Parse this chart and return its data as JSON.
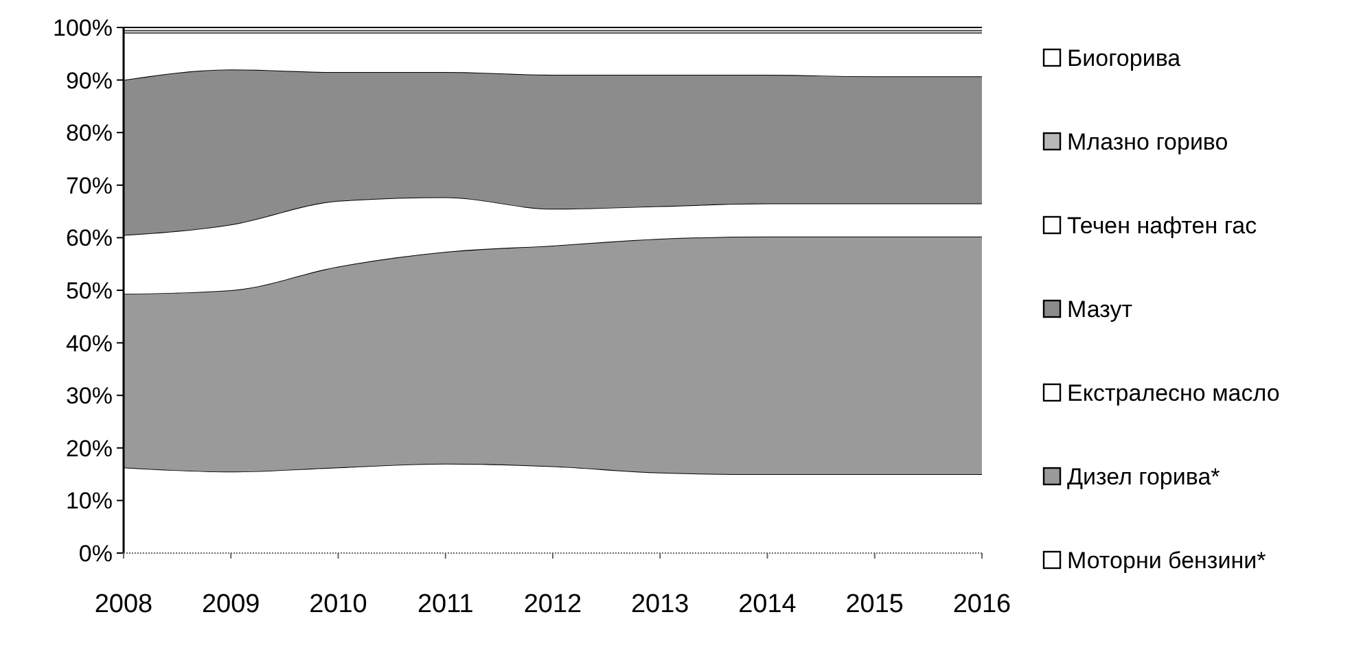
{
  "chart_data": {
    "type": "area",
    "stacked": true,
    "categories": [
      "2008",
      "2009",
      "2010",
      "2011",
      "2012",
      "2013",
      "2014",
      "2015",
      "2016"
    ],
    "series": [
      {
        "name": "Моторни бензини*",
        "color": "#ffffff",
        "values": [
          16.3,
          15.5,
          16.3,
          17,
          16.5,
          15.3,
          15,
          15,
          15
        ]
      },
      {
        "name": "Дизел горива*",
        "color": "#9a9a9a",
        "values": [
          33.0,
          34.5,
          38.2,
          40.3,
          42.0,
          44.5,
          45.2,
          45.2,
          45.2
        ]
      },
      {
        "name": "Екстралесно масло",
        "color": "#ffffff",
        "values": [
          11.2,
          12.5,
          12.5,
          10.4,
          7.0,
          6.2,
          6.3,
          6.3,
          6.3
        ]
      },
      {
        "name": "Мазут",
        "color": "#8c8c8c",
        "values": [
          29.5,
          29.5,
          24.5,
          23.8,
          25.5,
          25.0,
          24.5,
          24.2,
          24.2
        ]
      },
      {
        "name": "Течен нафтен гас",
        "color": "#ffffff",
        "values": [
          9.0,
          7.0,
          7.5,
          7.5,
          8.0,
          8.0,
          8.0,
          8.3,
          8.3
        ]
      },
      {
        "name": "Млазно гориво",
        "color": "#b8b8b8",
        "values": [
          0.5,
          0.5,
          0.5,
          0.5,
          0.5,
          0.5,
          0.5,
          0.5,
          0.5
        ]
      },
      {
        "name": "Биогорива",
        "color": "#ffffff",
        "values": [
          0.5,
          0.5,
          0.5,
          0.5,
          0.5,
          0.5,
          0.5,
          0.5,
          0.5
        ]
      }
    ],
    "ylim": [
      0,
      100
    ],
    "yticks": [
      {
        "value": 0,
        "label": "0%"
      },
      {
        "value": 10,
        "label": "10%"
      },
      {
        "value": 20,
        "label": "20%"
      },
      {
        "value": 30,
        "label": "30%"
      },
      {
        "value": 40,
        "label": "40%"
      },
      {
        "value": 50,
        "label": "50%"
      },
      {
        "value": 60,
        "label": "60%"
      },
      {
        "value": 70,
        "label": "70%"
      },
      {
        "value": 80,
        "label": "80%"
      },
      {
        "value": 90,
        "label": "90%"
      },
      {
        "value": 100,
        "label": "100%"
      }
    ],
    "legend": "right",
    "grid": false
  }
}
